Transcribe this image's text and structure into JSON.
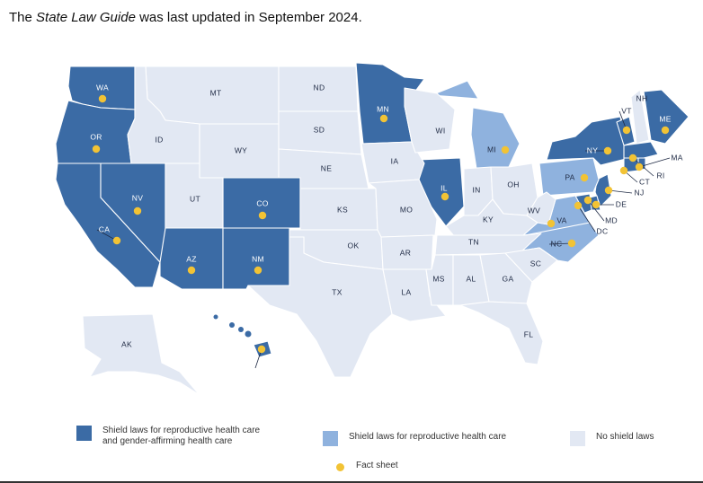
{
  "header": {
    "prefix": "The ",
    "guide_name": "State Law Guide",
    "suffix": " was last updated in September 2024."
  },
  "colors": {
    "shield_both": "#3B6BA5",
    "shield_repro": "#8FB2DE",
    "no_shield": "#E2E8F3",
    "fact_sheet": "#F2C335"
  },
  "legend": {
    "shield_both": "Shield laws for reproductive health care and gender-affirming health care",
    "shield_both_line1": "Shield laws for reproductive health care",
    "shield_both_line2": "and gender-affirming health care",
    "shield_repro": "Shield laws for reproductive health care",
    "no_shield": "No shield laws",
    "fact_sheet": "Fact sheet"
  },
  "states": [
    {
      "abbr": "WA",
      "status": "shield_both",
      "fact_sheet": true
    },
    {
      "abbr": "OR",
      "status": "shield_both",
      "fact_sheet": true
    },
    {
      "abbr": "CA",
      "status": "shield_both",
      "fact_sheet": true
    },
    {
      "abbr": "NV",
      "status": "shield_both",
      "fact_sheet": true
    },
    {
      "abbr": "AZ",
      "status": "shield_both",
      "fact_sheet": true
    },
    {
      "abbr": "CO",
      "status": "shield_both",
      "fact_sheet": true
    },
    {
      "abbr": "NM",
      "status": "shield_both",
      "fact_sheet": true
    },
    {
      "abbr": "MN",
      "status": "shield_both",
      "fact_sheet": true
    },
    {
      "abbr": "IL",
      "status": "shield_both",
      "fact_sheet": true
    },
    {
      "abbr": "NY",
      "status": "shield_both",
      "fact_sheet": true
    },
    {
      "abbr": "VT",
      "status": "shield_both",
      "fact_sheet": true
    },
    {
      "abbr": "ME",
      "status": "shield_both",
      "fact_sheet": true
    },
    {
      "abbr": "MA",
      "status": "shield_both",
      "fact_sheet": true
    },
    {
      "abbr": "CT",
      "status": "shield_both",
      "fact_sheet": true
    },
    {
      "abbr": "RI",
      "status": "shield_both",
      "fact_sheet": true
    },
    {
      "abbr": "NJ",
      "status": "shield_both",
      "fact_sheet": true
    },
    {
      "abbr": "DE",
      "status": "shield_both",
      "fact_sheet": true
    },
    {
      "abbr": "MD",
      "status": "shield_both",
      "fact_sheet": true
    },
    {
      "abbr": "DC",
      "status": "shield_both",
      "fact_sheet": true
    },
    {
      "abbr": "HI",
      "status": "shield_both",
      "fact_sheet": true
    },
    {
      "abbr": "MI",
      "status": "shield_repro",
      "fact_sheet": true
    },
    {
      "abbr": "PA",
      "status": "shield_repro",
      "fact_sheet": true
    },
    {
      "abbr": "VA",
      "status": "shield_repro",
      "fact_sheet": true
    },
    {
      "abbr": "NC",
      "status": "shield_repro",
      "fact_sheet": true
    },
    {
      "abbr": "NH",
      "status": "no_shield",
      "fact_sheet": false
    },
    {
      "abbr": "MT",
      "status": "no_shield",
      "fact_sheet": false
    },
    {
      "abbr": "ID",
      "status": "no_shield",
      "fact_sheet": false
    },
    {
      "abbr": "WY",
      "status": "no_shield",
      "fact_sheet": false
    },
    {
      "abbr": "UT",
      "status": "no_shield",
      "fact_sheet": false
    },
    {
      "abbr": "ND",
      "status": "no_shield",
      "fact_sheet": false
    },
    {
      "abbr": "SD",
      "status": "no_shield",
      "fact_sheet": false
    },
    {
      "abbr": "NE",
      "status": "no_shield",
      "fact_sheet": false
    },
    {
      "abbr": "KS",
      "status": "no_shield",
      "fact_sheet": false
    },
    {
      "abbr": "OK",
      "status": "no_shield",
      "fact_sheet": false
    },
    {
      "abbr": "TX",
      "status": "no_shield",
      "fact_sheet": false
    },
    {
      "abbr": "IA",
      "status": "no_shield",
      "fact_sheet": false
    },
    {
      "abbr": "MO",
      "status": "no_shield",
      "fact_sheet": false
    },
    {
      "abbr": "AR",
      "status": "no_shield",
      "fact_sheet": false
    },
    {
      "abbr": "LA",
      "status": "no_shield",
      "fact_sheet": false
    },
    {
      "abbr": "WI",
      "status": "no_shield",
      "fact_sheet": false
    },
    {
      "abbr": "IN",
      "status": "no_shield",
      "fact_sheet": false
    },
    {
      "abbr": "OH",
      "status": "no_shield",
      "fact_sheet": false
    },
    {
      "abbr": "KY",
      "status": "no_shield",
      "fact_sheet": false
    },
    {
      "abbr": "TN",
      "status": "no_shield",
      "fact_sheet": false
    },
    {
      "abbr": "MS",
      "status": "no_shield",
      "fact_sheet": false
    },
    {
      "abbr": "AL",
      "status": "no_shield",
      "fact_sheet": false
    },
    {
      "abbr": "GA",
      "status": "no_shield",
      "fact_sheet": false
    },
    {
      "abbr": "SC",
      "status": "no_shield",
      "fact_sheet": false
    },
    {
      "abbr": "FL",
      "status": "no_shield",
      "fact_sheet": false
    },
    {
      "abbr": "WV",
      "status": "no_shield",
      "fact_sheet": false
    },
    {
      "abbr": "AK",
      "status": "no_shield",
      "fact_sheet": false
    }
  ]
}
